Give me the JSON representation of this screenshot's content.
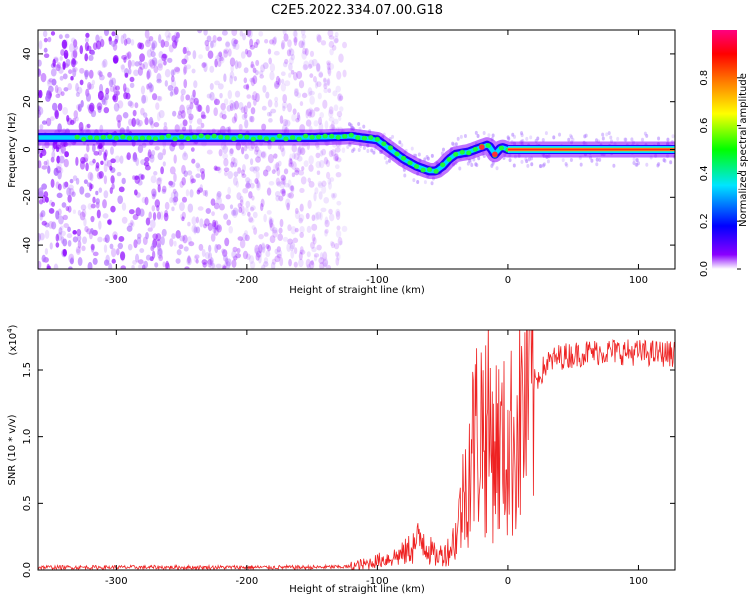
{
  "title": "C2E5.2022.334.07.00.G18",
  "chart_data": [
    {
      "type": "heatmap",
      "xlabel": "Height of straight line (km)",
      "ylabel": "Frequency (Hz)",
      "xlim": [
        -360,
        128
      ],
      "ylim": [
        -50,
        50
      ],
      "x_ticks": [
        -300,
        -200,
        -100,
        0,
        100
      ],
      "y_ticks": [
        -40,
        -20,
        0,
        20,
        40
      ],
      "colorbar": {
        "label": "Normalized spectral amplitude",
        "range": [
          0,
          1
        ],
        "ticks": [
          "0.0",
          "0.2",
          "0.4",
          "0.6",
          "0.8"
        ],
        "colors": [
          "#ffffff",
          "#8a00ff",
          "#0000ff",
          "#00e5ff",
          "#00ff00",
          "#ffff00",
          "#ff8000",
          "#ff0000",
          "#ff0080"
        ]
      },
      "ridge": {
        "x": [
          -360,
          -300,
          -250,
          -200,
          -150,
          -120,
          -100,
          -90,
          -80,
          -70,
          -60,
          -55,
          -50,
          -45,
          -40,
          -30,
          -20,
          -15,
          -10,
          -5,
          0,
          20,
          60,
          100,
          128
        ],
        "y": [
          5,
          5,
          5,
          5,
          5,
          5.5,
          4,
          0,
          -4,
          -7,
          -9,
          -9,
          -7,
          -4,
          -2,
          -1,
          1,
          2,
          -2,
          1,
          0,
          0,
          0,
          0,
          0
        ]
      },
      "grid": false
    },
    {
      "type": "line",
      "xlabel": "Height of straight line (km)",
      "ylabel": "SNR (10 * v/v)",
      "y_exponent_label": "(x10",
      "y_exponent": "4",
      "xlim": [
        -360,
        128
      ],
      "ylim": [
        0,
        18000
      ],
      "x_ticks": [
        -300,
        -200,
        -100,
        0,
        100
      ],
      "y_ticks": [
        "0.0",
        "0.5",
        "1.0",
        "1.5"
      ],
      "series": [
        {
          "color": "#ee2222",
          "x": [
            -360,
            -300,
            -250,
            -200,
            -150,
            -120,
            -110,
            -100,
            -90,
            -80,
            -70,
            -65,
            -60,
            -55,
            -50,
            -45,
            -40,
            -35,
            -30,
            -25,
            -20,
            -15,
            -10,
            -5,
            0,
            5,
            10,
            20,
            30,
            40,
            60,
            80,
            100,
            128
          ],
          "y": [
            200,
            200,
            200,
            200,
            200,
            250,
            400,
            700,
            900,
            1200,
            2000,
            2500,
            1500,
            1000,
            1200,
            1500,
            2500,
            5000,
            8000,
            10000,
            11000,
            10500,
            9500,
            9000,
            9000,
            10000,
            11500,
            14000,
            15500,
            16000,
            16300,
            16400,
            16300,
            16200
          ]
        }
      ],
      "grid": false
    }
  ]
}
